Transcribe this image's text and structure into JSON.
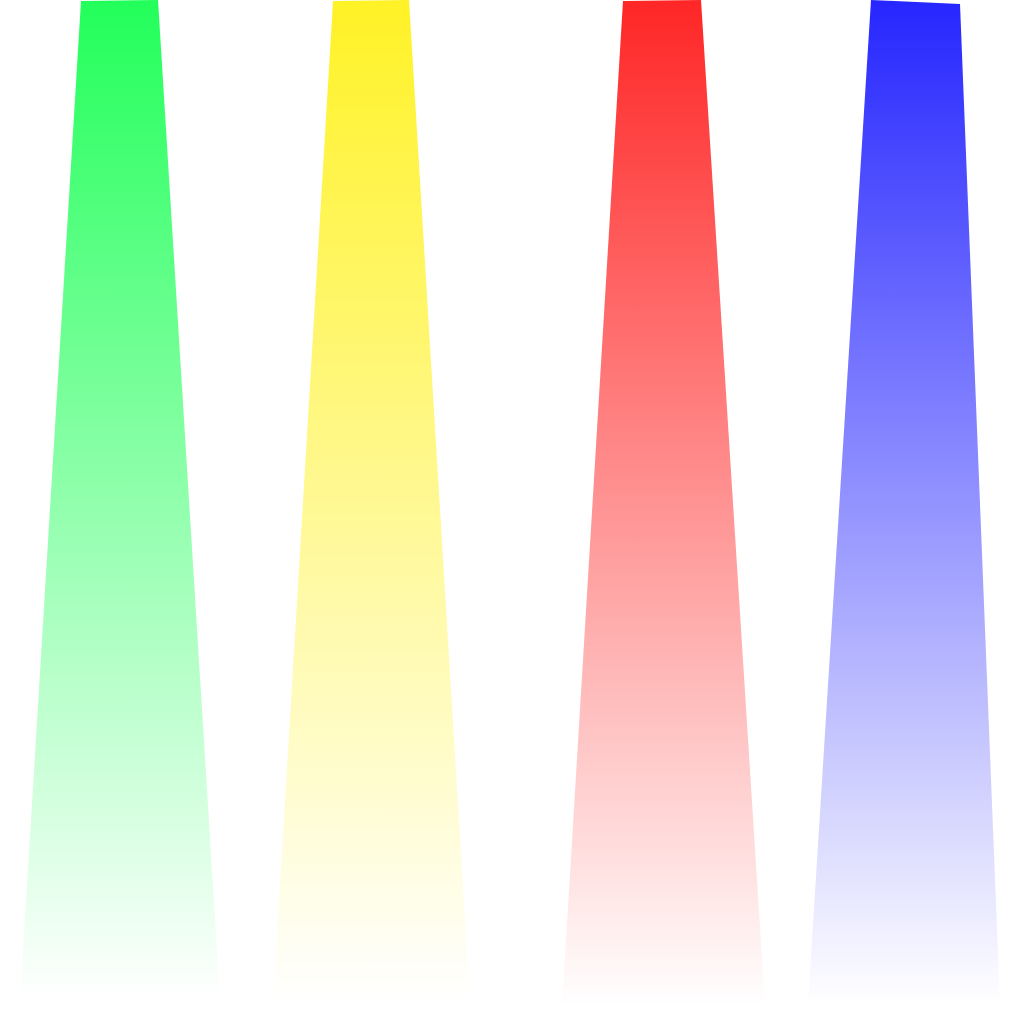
{
  "background": "#ffffff",
  "beams": [
    {
      "id": "green",
      "color_top": "#22ff5a",
      "color_bottom": "#ffffff"
    },
    {
      "id": "yellow",
      "color_top": "#fff226",
      "color_bottom": "#ffffff"
    },
    {
      "id": "red",
      "color_top": "#ff2626",
      "color_bottom": "#ffffff"
    },
    {
      "id": "blue",
      "color_top": "#2626ff",
      "color_bottom": "#ffffff"
    }
  ]
}
